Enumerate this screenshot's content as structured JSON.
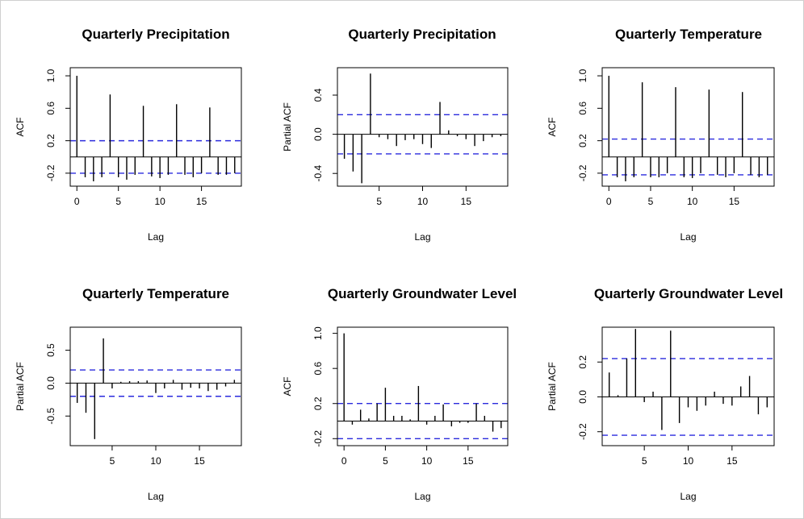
{
  "chart_data": [
    {
      "type": "bar",
      "title": "Quarterly Precipitation",
      "xlabel": "Lag",
      "ylabel": "ACF",
      "xlim": [
        -0.8,
        19.8
      ],
      "ylim": [
        -0.36,
        1.1
      ],
      "xticks": [
        0,
        5,
        10,
        15
      ],
      "yticks": [
        -0.2,
        0.2,
        0.6,
        1.0
      ],
      "ytick_labels": [
        "-0.2",
        "0.2",
        "0.6",
        "1.0"
      ],
      "ci": 0.2,
      "series": [
        {
          "lags": [
            0,
            1,
            2,
            3,
            4,
            5,
            6,
            7,
            8,
            9,
            10,
            11,
            12,
            13,
            14,
            15,
            16,
            17,
            18,
            19
          ],
          "values": [
            1.0,
            -0.25,
            -0.3,
            -0.25,
            0.77,
            -0.25,
            -0.28,
            -0.22,
            0.63,
            -0.24,
            -0.26,
            -0.22,
            0.65,
            -0.22,
            -0.25,
            -0.2,
            0.61,
            -0.22,
            -0.22,
            -0.2
          ]
        }
      ]
    },
    {
      "type": "bar",
      "title": "Quarterly Precipitation",
      "xlabel": "Lag",
      "ylabel": "Partial ACF",
      "xlim": [
        0.2,
        19.8
      ],
      "ylim": [
        -0.53,
        0.68
      ],
      "xticks": [
        5,
        10,
        15
      ],
      "yticks": [
        -0.4,
        0.0,
        0.4
      ],
      "ytick_labels": [
        "-0.4",
        "0.0",
        "0.4"
      ],
      "ci": 0.2,
      "series": [
        {
          "lags": [
            1,
            2,
            3,
            4,
            5,
            6,
            7,
            8,
            9,
            10,
            11,
            12,
            13,
            14,
            15,
            16,
            17,
            18,
            19
          ],
          "values": [
            -0.25,
            -0.38,
            -0.5,
            0.62,
            -0.03,
            -0.05,
            -0.12,
            -0.06,
            -0.05,
            -0.1,
            -0.14,
            0.33,
            0.04,
            -0.02,
            -0.05,
            -0.12,
            -0.07,
            -0.03,
            -0.02
          ]
        }
      ]
    },
    {
      "type": "bar",
      "title": "Quarterly Temperature",
      "xlabel": "Lag",
      "ylabel": "ACF",
      "xlim": [
        -0.8,
        19.8
      ],
      "ylim": [
        -0.36,
        1.1
      ],
      "xticks": [
        0,
        5,
        10,
        15
      ],
      "yticks": [
        -0.2,
        0.2,
        0.6,
        1.0
      ],
      "ytick_labels": [
        "-0.2",
        "0.2",
        "0.6",
        "1.0"
      ],
      "ci": 0.22,
      "series": [
        {
          "lags": [
            0,
            1,
            2,
            3,
            4,
            5,
            6,
            7,
            8,
            9,
            10,
            11,
            12,
            13,
            14,
            15,
            16,
            17,
            18,
            19
          ],
          "values": [
            1.0,
            -0.25,
            -0.3,
            -0.25,
            0.92,
            -0.25,
            -0.25,
            -0.2,
            0.86,
            -0.25,
            -0.26,
            -0.2,
            0.83,
            -0.22,
            -0.25,
            -0.2,
            0.8,
            -0.22,
            -0.25,
            -0.22
          ]
        }
      ]
    },
    {
      "type": "bar",
      "title": "Quarterly Temperature",
      "xlabel": "Lag",
      "ylabel": "Partial ACF",
      "xlim": [
        0.2,
        19.8
      ],
      "ylim": [
        -0.95,
        0.85
      ],
      "xticks": [
        5,
        10,
        15
      ],
      "yticks": [
        -0.5,
        0.0,
        0.5
      ],
      "ytick_labels": [
        "-0.5",
        "0.0",
        "0.5"
      ],
      "ci": 0.2,
      "series": [
        {
          "lags": [
            1,
            2,
            3,
            4,
            5,
            6,
            7,
            8,
            9,
            10,
            11,
            12,
            13,
            14,
            15,
            16,
            17,
            18,
            19
          ],
          "values": [
            -0.3,
            -0.45,
            -0.85,
            0.68,
            -0.08,
            0.02,
            0.03,
            0.03,
            0.04,
            -0.15,
            -0.08,
            0.05,
            -0.1,
            -0.07,
            -0.08,
            -0.12,
            -0.1,
            -0.05,
            0.05
          ]
        }
      ]
    },
    {
      "type": "bar",
      "title": "Quarterly Groundwater Level",
      "xlabel": "Lag",
      "ylabel": "ACF",
      "xlim": [
        -0.8,
        19.8
      ],
      "ylim": [
        -0.28,
        1.07
      ],
      "xticks": [
        0,
        5,
        10,
        15
      ],
      "yticks": [
        -0.2,
        0.2,
        0.6,
        1.0
      ],
      "ytick_labels": [
        "-0.2",
        "0.2",
        "0.6",
        "1.0"
      ],
      "ci": 0.2,
      "series": [
        {
          "lags": [
            0,
            1,
            2,
            3,
            4,
            5,
            6,
            7,
            8,
            9,
            10,
            11,
            12,
            13,
            14,
            15,
            16,
            17,
            18,
            19
          ],
          "values": [
            1.0,
            -0.04,
            0.13,
            0.03,
            0.2,
            0.38,
            0.06,
            0.06,
            0.02,
            0.4,
            -0.04,
            0.06,
            0.19,
            -0.06,
            -0.02,
            -0.02,
            0.2,
            0.06,
            -0.12,
            -0.08
          ]
        }
      ]
    },
    {
      "type": "bar",
      "title": "Quarterly Groundwater Level",
      "xlabel": "Lag",
      "ylabel": "Partial ACF",
      "xlim": [
        0.2,
        19.8
      ],
      "ylim": [
        -0.28,
        0.4
      ],
      "xticks": [
        5,
        10,
        15
      ],
      "yticks": [
        -0.2,
        0.0,
        0.2
      ],
      "ytick_labels": [
        "-0.2",
        "0.0",
        "0.2"
      ],
      "ci": 0.22,
      "series": [
        {
          "lags": [
            1,
            2,
            3,
            4,
            5,
            6,
            7,
            8,
            9,
            10,
            11,
            12,
            13,
            14,
            15,
            16,
            17,
            18,
            19
          ],
          "values": [
            0.14,
            0.01,
            0.22,
            0.39,
            -0.03,
            0.03,
            -0.19,
            0.38,
            -0.15,
            -0.06,
            -0.08,
            -0.05,
            0.03,
            -0.04,
            -0.05,
            0.06,
            0.12,
            -0.1,
            -0.06
          ]
        }
      ]
    }
  ]
}
